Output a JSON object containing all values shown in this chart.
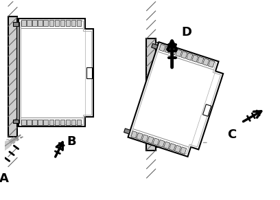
{
  "bg_color": "#ffffff",
  "line_color": "#000000",
  "figsize": [
    4.08,
    2.91
  ],
  "dpi": 100,
  "label_A": "A",
  "label_B": "B",
  "label_C": "C",
  "label_D": "D",
  "wall_hatch_color": "#666666",
  "wall_fill": "#aaaaaa",
  "module_fill": "#ffffff",
  "terminal_fill": "#cccccc",
  "screwdriver_fill": "#bbbbbb"
}
